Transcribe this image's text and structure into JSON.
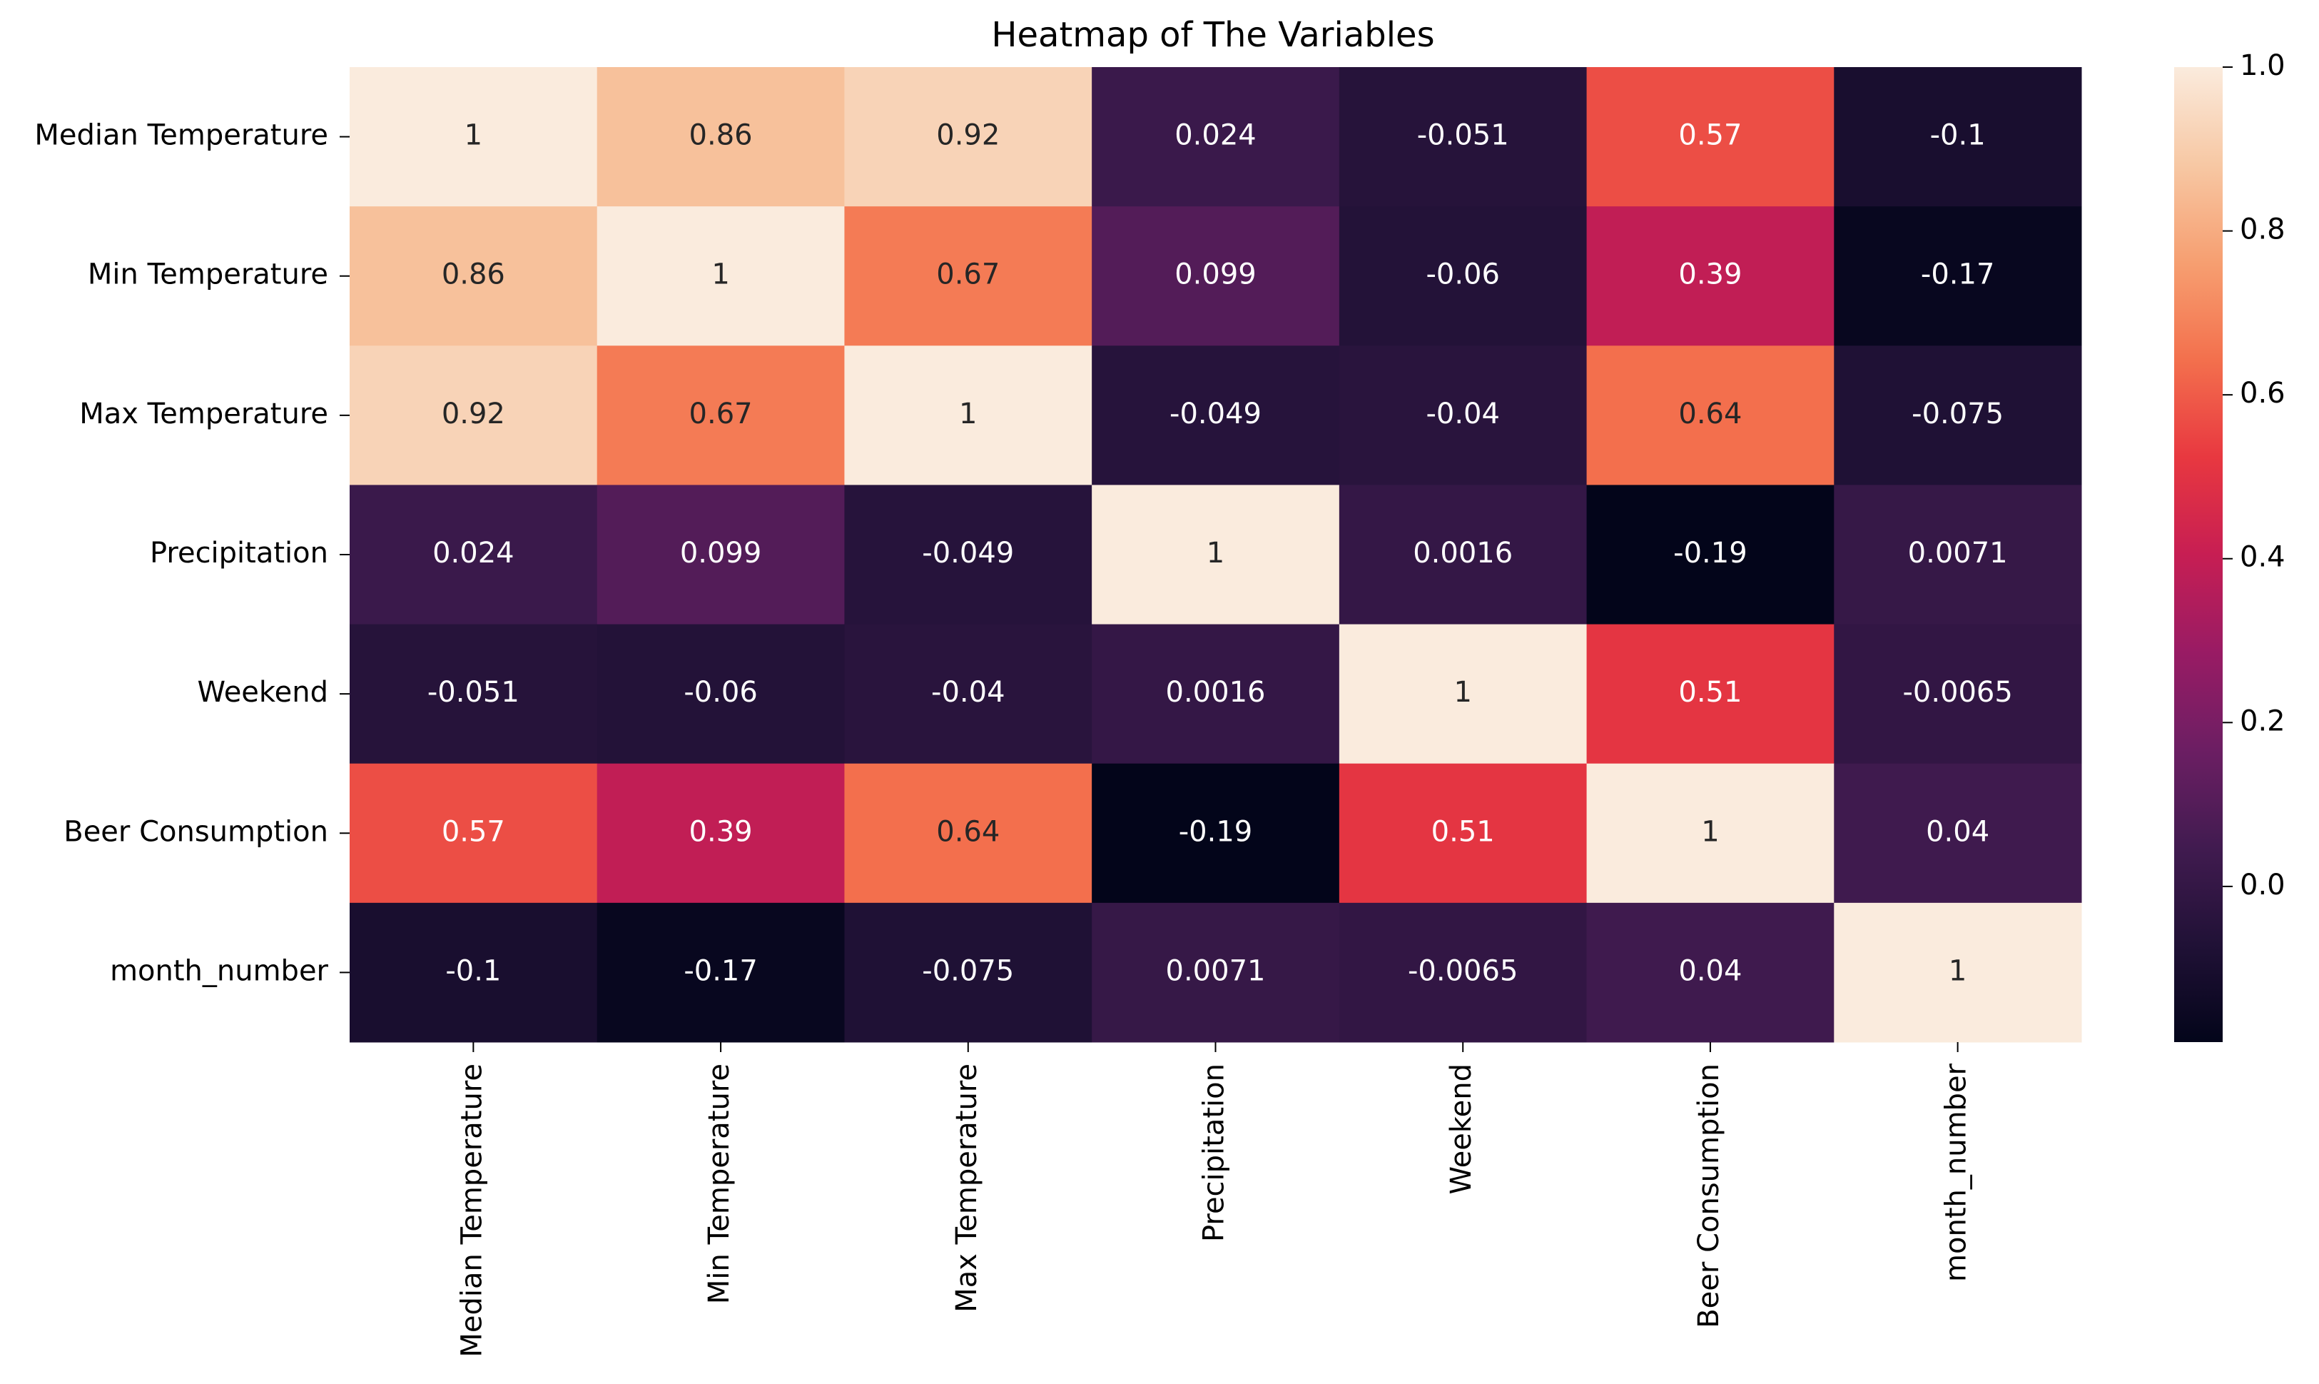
{
  "chart_data": {
    "type": "heatmap",
    "title": "Heatmap of The Variables",
    "row_labels": [
      "Median Temperature",
      "Min Temperature",
      "Max Temperature",
      "Precipitation",
      "Weekend",
      "Beer Consumption",
      "month_number"
    ],
    "col_labels": [
      "Median Temperature",
      "Min Temperature",
      "Max Temperature",
      "Precipitation",
      "Weekend",
      "Beer Consumption",
      "month_number"
    ],
    "values": [
      [
        1,
        0.86,
        0.92,
        0.024,
        -0.051,
        0.57,
        -0.1
      ],
      [
        0.86,
        1,
        0.67,
        0.099,
        -0.06,
        0.39,
        -0.17
      ],
      [
        0.92,
        0.67,
        1,
        -0.049,
        -0.04,
        0.64,
        -0.075
      ],
      [
        0.024,
        0.099,
        -0.049,
        1,
        0.0016,
        -0.19,
        0.0071
      ],
      [
        -0.051,
        -0.06,
        -0.04,
        0.0016,
        1,
        0.51,
        -0.0065
      ],
      [
        0.57,
        0.39,
        0.64,
        -0.19,
        0.51,
        1,
        0.04
      ],
      [
        -0.1,
        -0.17,
        -0.075,
        0.0071,
        -0.0065,
        0.04,
        1
      ]
    ],
    "cell_text": [
      [
        "1",
        "0.86",
        "0.92",
        "0.024",
        "-0.051",
        "0.57",
        "-0.1"
      ],
      [
        "0.86",
        "1",
        "0.67",
        "0.099",
        "-0.06",
        "0.39",
        "-0.17"
      ],
      [
        "0.92",
        "0.67",
        "1",
        "-0.049",
        "-0.04",
        "0.64",
        "-0.075"
      ],
      [
        "0.024",
        "0.099",
        "-0.049",
        "1",
        "0.0016",
        "-0.19",
        "0.0071"
      ],
      [
        "-0.051",
        "-0.06",
        "-0.04",
        "0.0016",
        "1",
        "0.51",
        "-0.0065"
      ],
      [
        "0.57",
        "0.39",
        "0.64",
        "-0.19",
        "0.51",
        "1",
        "0.04"
      ],
      [
        "-0.1",
        "-0.17",
        "-0.075",
        "0.0071",
        "-0.0065",
        "0.04",
        "1"
      ]
    ],
    "colorbar": {
      "range": [
        -0.19,
        1.0
      ],
      "ticks": [
        0.0,
        0.2,
        0.4,
        0.6,
        0.8,
        1.0
      ],
      "tick_labels": [
        "0.0",
        "0.2",
        "0.4",
        "0.6",
        "0.8",
        "1.0"
      ],
      "colormap": "rocket"
    },
    "annotation_colors": {
      "light_text": "#ffffff",
      "dark_text": "#262626"
    }
  }
}
